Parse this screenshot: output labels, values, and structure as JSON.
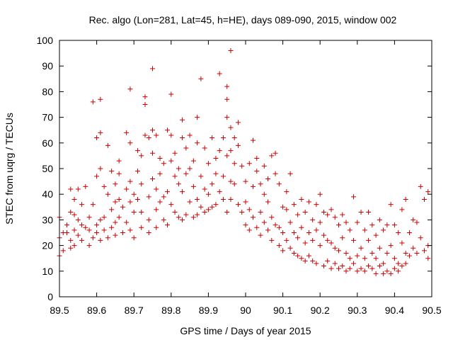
{
  "chart_data": {
    "type": "scatter",
    "title": "Rec. algo (Lon=281, Lat=45, h=HE), days 089-090, 2015, window 002",
    "xlabel": "GPS time / Days of year 2015",
    "ylabel": "STEC from uqrg / TECUs",
    "xlim": [
      89.5,
      90.5
    ],
    "ylim": [
      0,
      100
    ],
    "xticks": [
      "89.5",
      "89.6",
      "89.7",
      "89.8",
      "89.9",
      "90",
      "90.1",
      "90.2",
      "90.3",
      "90.4",
      "90.5"
    ],
    "yticks": [
      "0",
      "10",
      "20",
      "30",
      "40",
      "50",
      "60",
      "70",
      "80",
      "90",
      "100"
    ],
    "marker": "+",
    "color": "#cc0000",
    "series": [
      {
        "name": "STEC",
        "points": [
          [
            89.5,
            31
          ],
          [
            89.5,
            23
          ],
          [
            89.5,
            16
          ],
          [
            89.51,
            25
          ],
          [
            89.51,
            18
          ],
          [
            89.52,
            28
          ],
          [
            89.52,
            25
          ],
          [
            89.53,
            33
          ],
          [
            89.53,
            22
          ],
          [
            89.53,
            19
          ],
          [
            89.53,
            42
          ],
          [
            89.54,
            38
          ],
          [
            89.54,
            32
          ],
          [
            89.54,
            26
          ],
          [
            89.54,
            20
          ],
          [
            89.55,
            42
          ],
          [
            89.55,
            30
          ],
          [
            89.55,
            24
          ],
          [
            89.56,
            36
          ],
          [
            89.56,
            28
          ],
          [
            89.56,
            22
          ],
          [
            89.57,
            43
          ],
          [
            89.57,
            27
          ],
          [
            89.58,
            31
          ],
          [
            89.58,
            26
          ],
          [
            89.58,
            20
          ],
          [
            89.59,
            76
          ],
          [
            89.59,
            36
          ],
          [
            89.59,
            23
          ],
          [
            89.6,
            62
          ],
          [
            89.6,
            47
          ],
          [
            89.6,
            28
          ],
          [
            89.6,
            25
          ],
          [
            89.61,
            77
          ],
          [
            89.61,
            64
          ],
          [
            89.61,
            50
          ],
          [
            89.61,
            30
          ],
          [
            89.61,
            22
          ],
          [
            89.62,
            43
          ],
          [
            89.62,
            31
          ],
          [
            89.62,
            26
          ],
          [
            89.63,
            59
          ],
          [
            89.63,
            40
          ],
          [
            89.63,
            23
          ],
          [
            89.64,
            49
          ],
          [
            89.64,
            34
          ],
          [
            89.64,
            27
          ],
          [
            89.65,
            44
          ],
          [
            89.65,
            37
          ],
          [
            89.65,
            29
          ],
          [
            89.65,
            24
          ],
          [
            89.66,
            53
          ],
          [
            89.66,
            48
          ],
          [
            89.66,
            38
          ],
          [
            89.66,
            31
          ],
          [
            89.67,
            35
          ],
          [
            89.67,
            25
          ],
          [
            89.68,
            64
          ],
          [
            89.68,
            42
          ],
          [
            89.68,
            29
          ],
          [
            89.69,
            81
          ],
          [
            89.69,
            60
          ],
          [
            89.69,
            45
          ],
          [
            89.69,
            37
          ],
          [
            89.69,
            26
          ],
          [
            89.7,
            40
          ],
          [
            89.7,
            33
          ],
          [
            89.7,
            23
          ],
          [
            89.71,
            57
          ],
          [
            89.71,
            49
          ],
          [
            89.71,
            38
          ],
          [
            89.72,
            55
          ],
          [
            89.72,
            44
          ],
          [
            89.72,
            33
          ],
          [
            89.72,
            27
          ],
          [
            89.73,
            78
          ],
          [
            89.73,
            75
          ],
          [
            89.73,
            63
          ],
          [
            89.74,
            62
          ],
          [
            89.74,
            39
          ],
          [
            89.74,
            30
          ],
          [
            89.74,
            25
          ],
          [
            89.75,
            89
          ],
          [
            89.75,
            65
          ],
          [
            89.75,
            56
          ],
          [
            89.75,
            46
          ],
          [
            89.76,
            63
          ],
          [
            89.76,
            42
          ],
          [
            89.76,
            34
          ],
          [
            89.76,
            27
          ],
          [
            89.77,
            54
          ],
          [
            89.77,
            48
          ],
          [
            89.77,
            37
          ],
          [
            89.78,
            52
          ],
          [
            89.78,
            39
          ],
          [
            89.78,
            30
          ],
          [
            89.79,
            65
          ],
          [
            89.79,
            41
          ],
          [
            89.79,
            28
          ],
          [
            89.8,
            79
          ],
          [
            89.8,
            63
          ],
          [
            89.8,
            53
          ],
          [
            89.8,
            36
          ],
          [
            89.81,
            56
          ],
          [
            89.81,
            47
          ],
          [
            89.81,
            33
          ],
          [
            89.82,
            50
          ],
          [
            89.82,
            44
          ],
          [
            89.82,
            31
          ],
          [
            89.83,
            69
          ],
          [
            89.83,
            62
          ],
          [
            89.83,
            41
          ],
          [
            89.83,
            30
          ],
          [
            89.84,
            58
          ],
          [
            89.84,
            48
          ],
          [
            89.84,
            32
          ],
          [
            89.85,
            63
          ],
          [
            89.85,
            50
          ],
          [
            89.85,
            37
          ],
          [
            89.86,
            53
          ],
          [
            89.86,
            43
          ],
          [
            89.86,
            31
          ],
          [
            89.87,
            70
          ],
          [
            89.87,
            60
          ],
          [
            89.87,
            38
          ],
          [
            89.87,
            32
          ],
          [
            89.88,
            85
          ],
          [
            89.88,
            47
          ],
          [
            89.88,
            35
          ],
          [
            89.89,
            58
          ],
          [
            89.89,
            42
          ],
          [
            89.89,
            33
          ],
          [
            89.9,
            52
          ],
          [
            89.9,
            40
          ],
          [
            89.9,
            34
          ],
          [
            89.91,
            62
          ],
          [
            89.91,
            44
          ],
          [
            89.91,
            35
          ],
          [
            89.92,
            54
          ],
          [
            89.92,
            48
          ],
          [
            89.92,
            36
          ],
          [
            89.93,
            87
          ],
          [
            89.93,
            57
          ],
          [
            89.93,
            41
          ],
          [
            89.94,
            62
          ],
          [
            89.94,
            47
          ],
          [
            89.94,
            38
          ],
          [
            89.95,
            82
          ],
          [
            89.95,
            77
          ],
          [
            89.95,
            70
          ],
          [
            89.95,
            55
          ],
          [
            89.95,
            33
          ],
          [
            89.96,
            96
          ],
          [
            89.96,
            66
          ],
          [
            89.96,
            57
          ],
          [
            89.96,
            45
          ],
          [
            89.96,
            38
          ],
          [
            89.97,
            62
          ],
          [
            89.97,
            52
          ],
          [
            89.97,
            44
          ],
          [
            89.98,
            68
          ],
          [
            89.98,
            59
          ],
          [
            89.98,
            36
          ],
          [
            89.99,
            51
          ],
          [
            89.99,
            33
          ],
          [
            90.0,
            45
          ],
          [
            90.0,
            37
          ],
          [
            90.0,
            28
          ],
          [
            90.01,
            52
          ],
          [
            90.01,
            34
          ],
          [
            90.01,
            26
          ],
          [
            90.02,
            61
          ],
          [
            90.02,
            43
          ],
          [
            90.02,
            31
          ],
          [
            90.03,
            54
          ],
          [
            90.03,
            49
          ],
          [
            90.03,
            27
          ],
          [
            90.04,
            44
          ],
          [
            90.04,
            33
          ],
          [
            90.04,
            24
          ],
          [
            90.05,
            51
          ],
          [
            90.05,
            40
          ],
          [
            90.05,
            29
          ],
          [
            90.06,
            46
          ],
          [
            90.06,
            37
          ],
          [
            90.06,
            26
          ],
          [
            90.07,
            55
          ],
          [
            90.07,
            31
          ],
          [
            90.07,
            22
          ],
          [
            90.08,
            56
          ],
          [
            90.08,
            48
          ],
          [
            90.08,
            28
          ],
          [
            90.09,
            44
          ],
          [
            90.09,
            27
          ],
          [
            90.09,
            20
          ],
          [
            90.1,
            35
          ],
          [
            90.1,
            25
          ],
          [
            90.1,
            18
          ],
          [
            90.11,
            41
          ],
          [
            90.11,
            34
          ],
          [
            90.11,
            22
          ],
          [
            90.12,
            48
          ],
          [
            90.12,
            29
          ],
          [
            90.12,
            19
          ],
          [
            90.13,
            36
          ],
          [
            90.13,
            25
          ],
          [
            90.13,
            17
          ],
          [
            90.14,
            32
          ],
          [
            90.14,
            23
          ],
          [
            90.14,
            16
          ],
          [
            90.15,
            38
          ],
          [
            90.15,
            27
          ],
          [
            90.15,
            15
          ],
          [
            90.16,
            33
          ],
          [
            90.16,
            21
          ],
          [
            90.16,
            14
          ],
          [
            90.17,
            37
          ],
          [
            90.17,
            25
          ],
          [
            90.17,
            16
          ],
          [
            90.18,
            30
          ],
          [
            90.18,
            22
          ],
          [
            90.18,
            14
          ],
          [
            90.19,
            36
          ],
          [
            90.19,
            26
          ],
          [
            90.19,
            13
          ],
          [
            90.2,
            40
          ],
          [
            90.2,
            29
          ],
          [
            90.2,
            20
          ],
          [
            90.21,
            33
          ],
          [
            90.21,
            24
          ],
          [
            90.21,
            12
          ],
          [
            90.22,
            32
          ],
          [
            90.22,
            22
          ],
          [
            90.22,
            14
          ],
          [
            90.23,
            34
          ],
          [
            90.23,
            21
          ],
          [
            90.23,
            11
          ],
          [
            90.24,
            31
          ],
          [
            90.24,
            19
          ],
          [
            90.24,
            13
          ],
          [
            90.25,
            28
          ],
          [
            90.25,
            18
          ],
          [
            90.25,
            11
          ],
          [
            90.26,
            32
          ],
          [
            90.26,
            23
          ],
          [
            90.26,
            12
          ],
          [
            90.27,
            29
          ],
          [
            90.27,
            17
          ],
          [
            90.27,
            10
          ],
          [
            90.28,
            26
          ],
          [
            90.28,
            15
          ],
          [
            90.28,
            11
          ],
          [
            90.29,
            39
          ],
          [
            90.29,
            22
          ],
          [
            90.29,
            13
          ],
          [
            90.3,
            29
          ],
          [
            90.3,
            16
          ],
          [
            90.3,
            10
          ],
          [
            90.31,
            33
          ],
          [
            90.31,
            19
          ],
          [
            90.31,
            11
          ],
          [
            90.32,
            26
          ],
          [
            90.32,
            15
          ],
          [
            90.32,
            10
          ],
          [
            90.33,
            33
          ],
          [
            90.33,
            22
          ],
          [
            90.33,
            12
          ],
          [
            90.34,
            28
          ],
          [
            90.34,
            17
          ],
          [
            90.34,
            11
          ],
          [
            90.35,
            24
          ],
          [
            90.35,
            15
          ],
          [
            90.35,
            9
          ],
          [
            90.36,
            30
          ],
          [
            90.36,
            19
          ],
          [
            90.36,
            12
          ],
          [
            90.37,
            26
          ],
          [
            90.37,
            13
          ],
          [
            90.37,
            9
          ],
          [
            90.38,
            28
          ],
          [
            90.38,
            17
          ],
          [
            90.38,
            10
          ],
          [
            90.39,
            36
          ],
          [
            90.39,
            20
          ],
          [
            90.39,
            9
          ],
          [
            90.4,
            28
          ],
          [
            90.4,
            15
          ],
          [
            90.4,
            11
          ],
          [
            90.41,
            25
          ],
          [
            90.41,
            13
          ],
          [
            90.41,
            10
          ],
          [
            90.42,
            34
          ],
          [
            90.42,
            21
          ],
          [
            90.42,
            12
          ],
          [
            90.43,
            38
          ],
          [
            90.43,
            17
          ],
          [
            90.43,
            13
          ],
          [
            90.44,
            25
          ],
          [
            90.44,
            16
          ],
          [
            90.45,
            30
          ],
          [
            90.45,
            19
          ],
          [
            90.46,
            29
          ],
          [
            90.46,
            17
          ],
          [
            90.47,
            43
          ],
          [
            90.47,
            23
          ],
          [
            90.48,
            38
          ],
          [
            90.48,
            18
          ],
          [
            90.49,
            41
          ],
          [
            90.49,
            20
          ],
          [
            90.49,
            15
          ]
        ]
      }
    ]
  }
}
